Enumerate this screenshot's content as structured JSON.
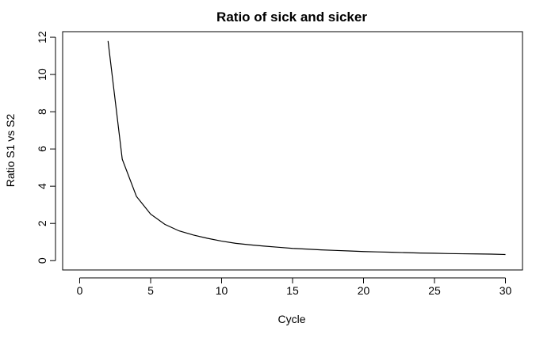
{
  "chart_data": {
    "type": "line",
    "title": "Ratio of sick and sicker",
    "xlabel": "Cycle",
    "ylabel": "Ratio S1 vs S2",
    "xlim": [
      -1.2,
      31.2
    ],
    "ylim": [
      -0.5,
      12.3
    ],
    "x_ticks": [
      0,
      5,
      10,
      15,
      20,
      25,
      30
    ],
    "y_ticks": [
      0,
      2,
      4,
      6,
      8,
      10,
      12
    ],
    "grid": false,
    "legend": "none",
    "line_color": "#000000",
    "series": [
      {
        "x": [
          2,
          3,
          4,
          5,
          6,
          7,
          8,
          9,
          10,
          11,
          12,
          13,
          14,
          15,
          16,
          17,
          18,
          19,
          20,
          21,
          22,
          23,
          24,
          25,
          26,
          27,
          28,
          29,
          30
        ],
        "values": [
          11.8,
          5.45,
          3.45,
          2.5,
          1.95,
          1.6,
          1.38,
          1.2,
          1.05,
          0.93,
          0.85,
          0.78,
          0.72,
          0.66,
          0.62,
          0.58,
          0.55,
          0.52,
          0.49,
          0.47,
          0.45,
          0.43,
          0.41,
          0.4,
          0.38,
          0.37,
          0.36,
          0.35,
          0.33
        ]
      }
    ]
  }
}
